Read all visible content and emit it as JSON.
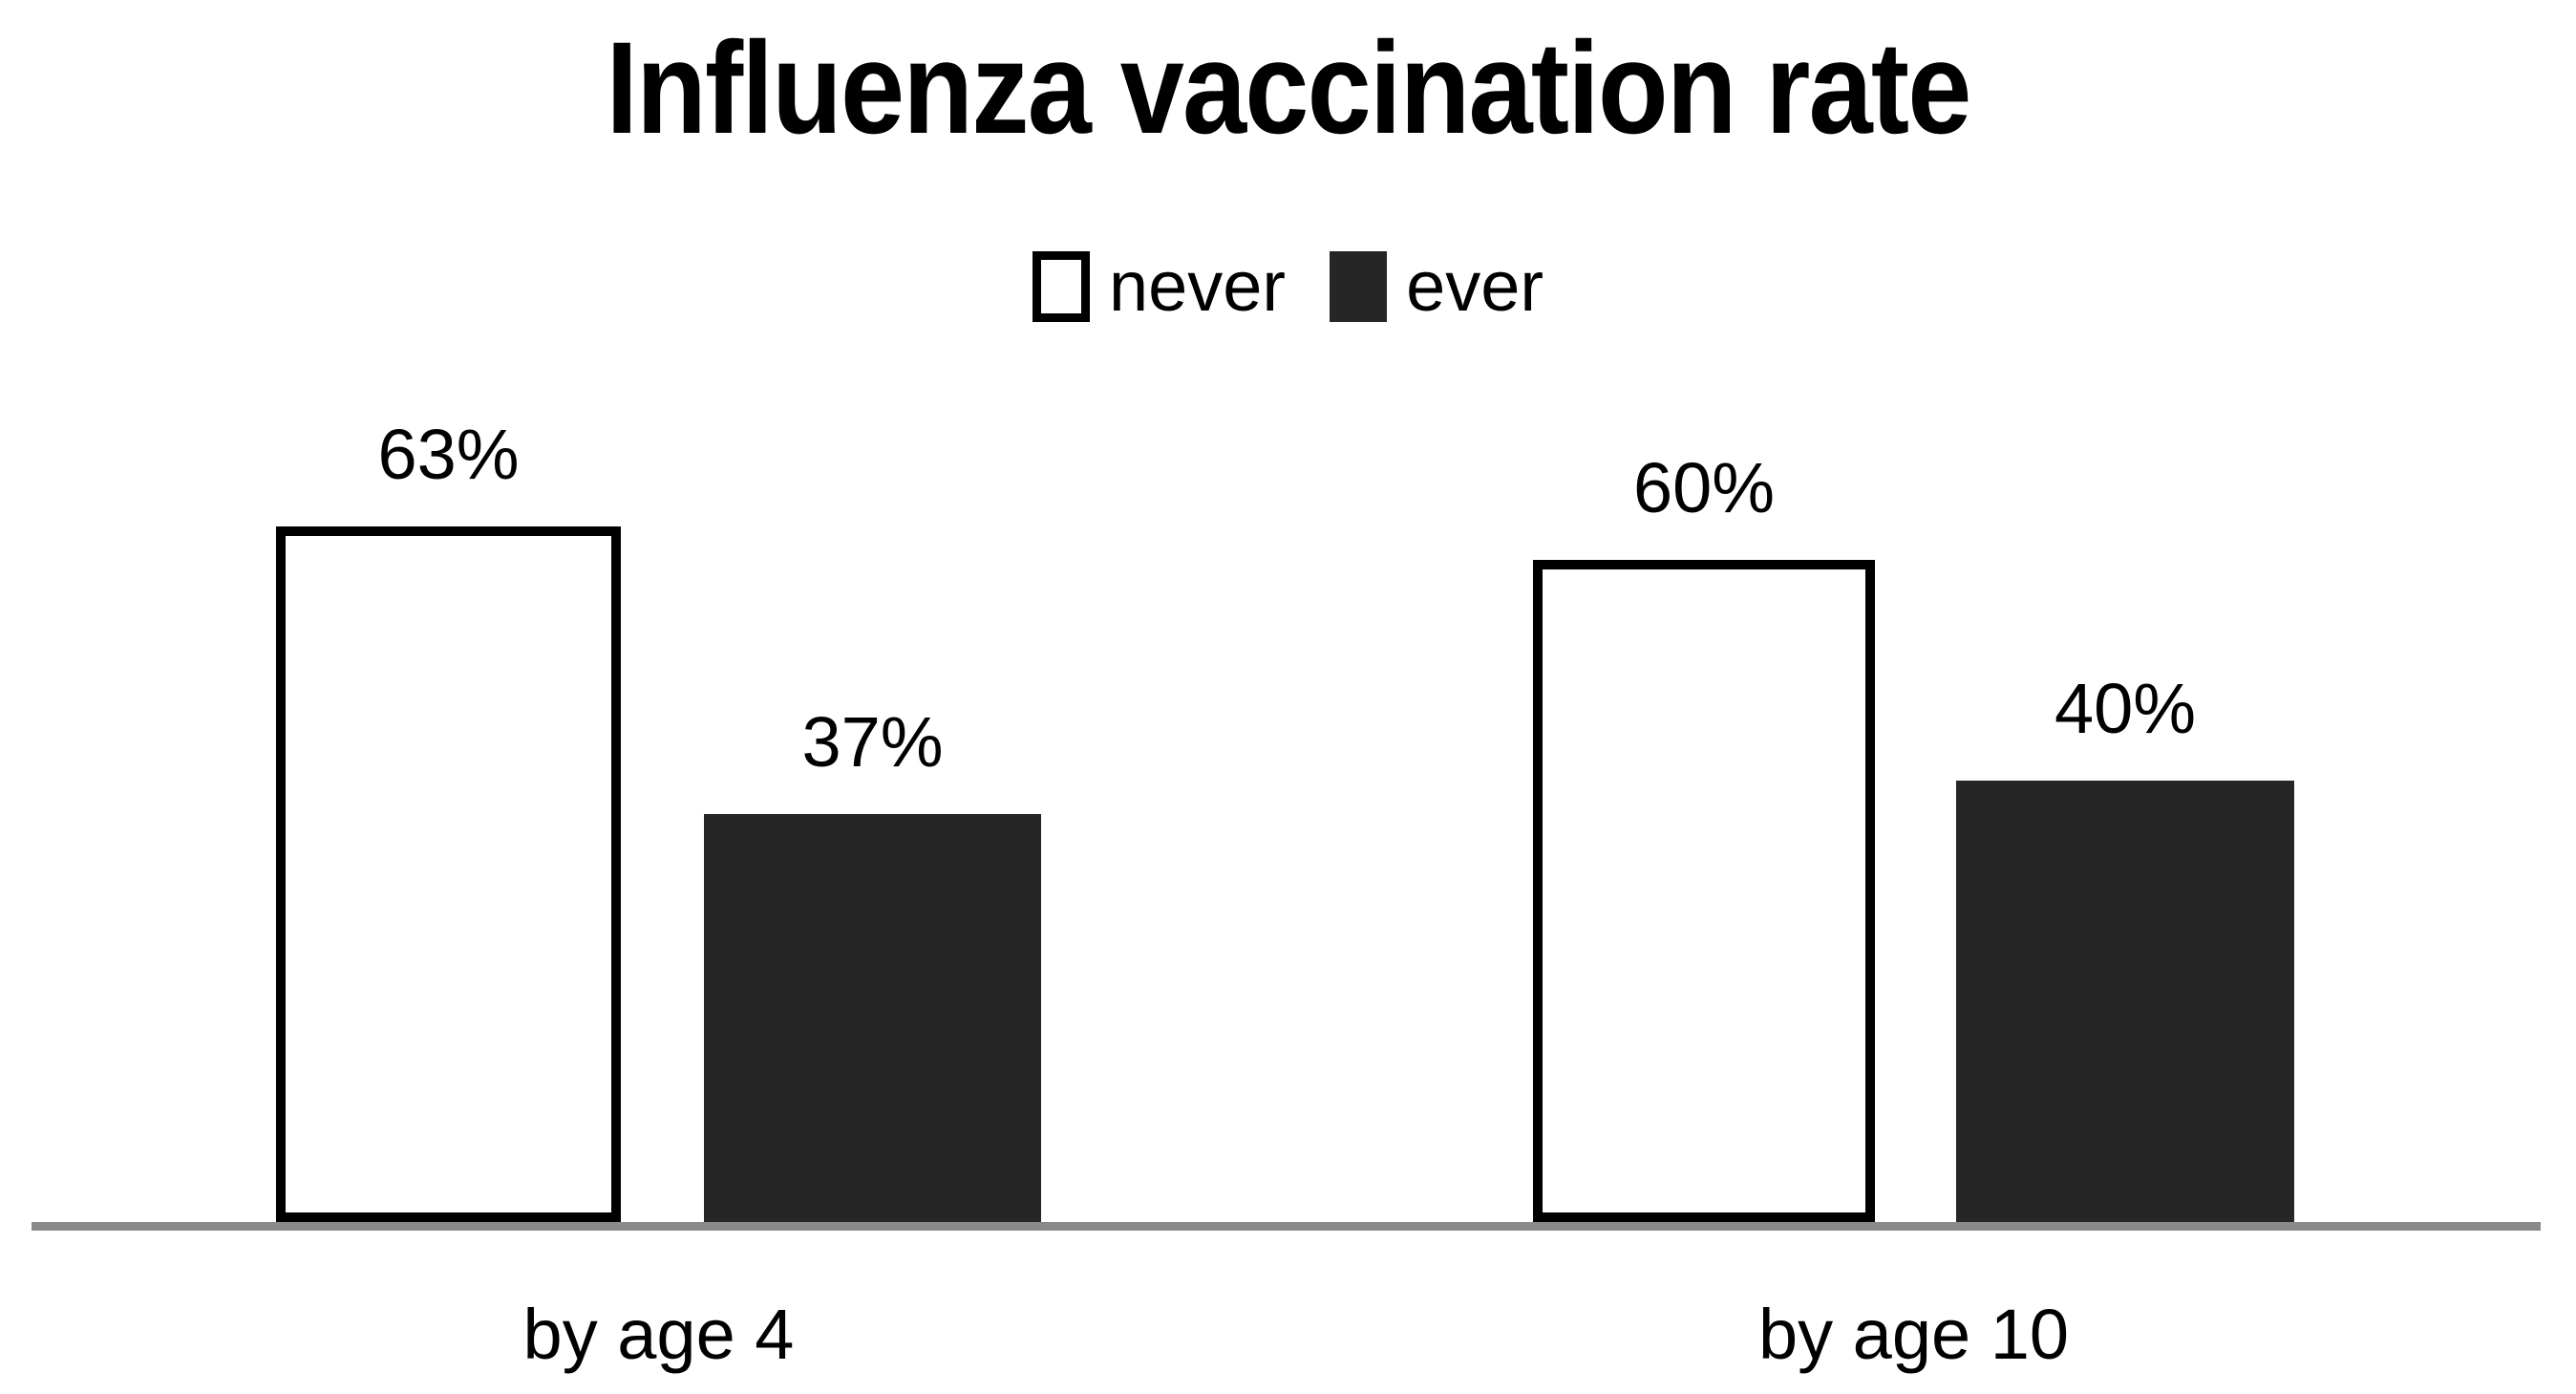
{
  "chart_data": {
    "type": "bar",
    "title": "Influenza vaccination rate",
    "categories": [
      "by age 4",
      "by age 10"
    ],
    "series": [
      {
        "name": "never",
        "values": [
          63,
          60
        ]
      },
      {
        "name": "ever",
        "values": [
          37,
          40
        ]
      }
    ],
    "value_labels": [
      [
        "63%",
        "37%"
      ],
      [
        "60%",
        "40%"
      ]
    ],
    "unit": "%",
    "ylim": [
      0,
      100
    ],
    "grid": false,
    "y_axis_visible": false,
    "legend_position": "top-center",
    "colors": {
      "never_fill": "#FFFFFF",
      "never_border": "#000000",
      "ever_fill": "#262626",
      "axis_line": "#8A8A8A",
      "text": "#000000",
      "background": "#FFFFFF"
    }
  }
}
